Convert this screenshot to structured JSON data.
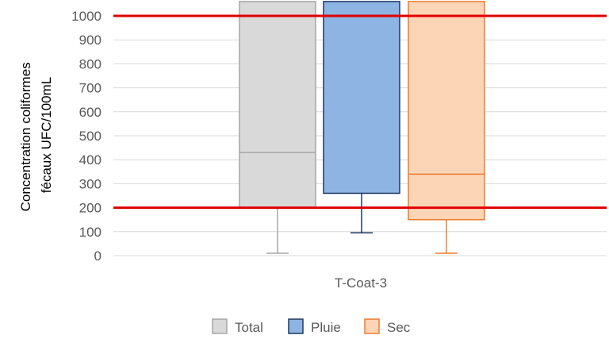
{
  "chart_data": {
    "type": "boxplot",
    "title": "",
    "ylabel_lines": [
      "Concentration coliformes",
      "fécaux UFC/100mL"
    ],
    "xlabel": "",
    "category": "T-Coat-3",
    "ylim": [
      0,
      1000
    ],
    "yticks": [
      "0",
      "100",
      "200",
      "300",
      "400",
      "500",
      "600",
      "700",
      "800",
      "900",
      "1000"
    ],
    "grid": true,
    "legend_position": "bottom",
    "series": [
      {
        "name": "Total",
        "fill": "#d9d9d9",
        "stroke": "#a6a6a6",
        "whisker_low": 10,
        "q1": 200,
        "median": 430,
        "q3": 1060
      },
      {
        "name": "Pluie",
        "fill": "#8eb4e3",
        "stroke": "#1f3864",
        "whisker_low": 95,
        "q1": 260,
        "median": null,
        "q3": 1060
      },
      {
        "name": "Sec",
        "fill": "#fbd5b5",
        "stroke": "#ed7d31",
        "whisker_low": 10,
        "q1": 150,
        "median": 340,
        "q3": 1060
      }
    ],
    "reference_lines": [
      {
        "value": 1000,
        "color": "#e00000"
      },
      {
        "value": 200,
        "color": "#e00000"
      }
    ]
  }
}
